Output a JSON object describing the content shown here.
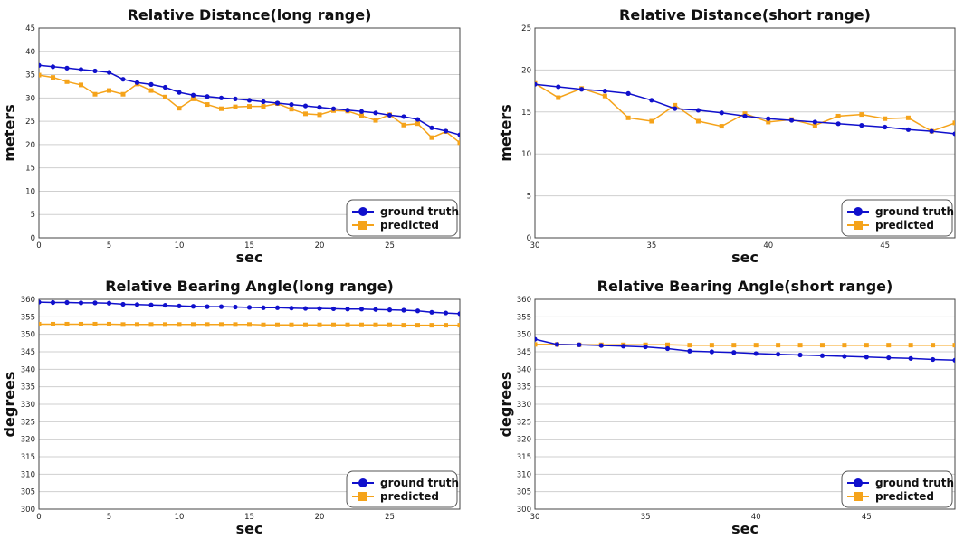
{
  "colors": {
    "ground_truth": "#1010cc",
    "predicted": "#f5a31a",
    "grid": "#cfcfcf"
  },
  "chart_data": [
    {
      "type": "line",
      "title": "Relative Distance(long range)",
      "xlabel": "sec",
      "ylabel": "meters",
      "xlim": [
        0,
        30
      ],
      "ylim": [
        0,
        45
      ],
      "xticks": [
        0,
        5,
        10,
        15,
        20,
        25
      ],
      "yticks": [
        0,
        5,
        10,
        15,
        20,
        25,
        30,
        35,
        40,
        45
      ],
      "grid": "horizontal",
      "legend": "bottom-right",
      "x": [
        0,
        1,
        2,
        3,
        4,
        5,
        6,
        7,
        8,
        9,
        10,
        11,
        12,
        13,
        14,
        15,
        16,
        17,
        18,
        19,
        20,
        21,
        22,
        23,
        24,
        25,
        26,
        27,
        28,
        29,
        30
      ],
      "series": [
        {
          "name": "ground truth",
          "marker": "circle",
          "values": [
            37.0,
            36.7,
            36.4,
            36.1,
            35.8,
            35.5,
            34.0,
            33.3,
            32.9,
            32.3,
            31.2,
            30.6,
            30.3,
            30.0,
            29.8,
            29.5,
            29.2,
            28.9,
            28.6,
            28.3,
            28.0,
            27.7,
            27.4,
            27.1,
            26.8,
            26.3,
            26.0,
            25.4,
            23.6,
            22.9,
            22.1
          ]
        },
        {
          "name": "predicted",
          "marker": "square",
          "values": [
            34.9,
            34.4,
            33.5,
            32.8,
            30.8,
            31.6,
            30.8,
            33.0,
            31.6,
            30.2,
            27.8,
            29.8,
            28.6,
            27.7,
            28.1,
            28.2,
            28.2,
            28.8,
            27.6,
            26.6,
            26.4,
            27.3,
            27.2,
            26.2,
            25.2,
            26.4,
            24.2,
            24.5,
            21.5,
            22.8,
            20.4
          ]
        }
      ]
    },
    {
      "type": "line",
      "title": "Relative Distance(short range)",
      "xlabel": "sec",
      "ylabel": "meters",
      "xlim": [
        30,
        48
      ],
      "ylim": [
        0,
        25
      ],
      "xticks": [
        30,
        35,
        40,
        45
      ],
      "yticks": [
        0,
        5,
        10,
        15,
        20,
        25
      ],
      "grid": "horizontal",
      "legend": "bottom-right",
      "x": [
        30,
        31,
        32,
        33,
        34,
        35,
        36,
        37,
        38,
        39,
        40,
        41,
        42,
        43,
        44,
        45,
        46,
        47,
        48
      ],
      "series": [
        {
          "name": "ground truth",
          "marker": "circle",
          "values": [
            18.3,
            18.0,
            17.7,
            17.5,
            17.2,
            16.4,
            15.4,
            15.2,
            14.9,
            14.5,
            14.2,
            14.0,
            13.8,
            13.6,
            13.4,
            13.2,
            12.9,
            12.7,
            12.4
          ]
        },
        {
          "name": "predicted",
          "marker": "square",
          "values": [
            18.4,
            16.7,
            17.8,
            16.9,
            14.3,
            13.9,
            15.8,
            13.9,
            13.3,
            14.8,
            13.8,
            14.1,
            13.4,
            14.5,
            14.7,
            14.2,
            14.3,
            12.7,
            13.7
          ]
        }
      ]
    },
    {
      "type": "line",
      "title": "Relative Bearing Angle(long range)",
      "xlabel": "sec",
      "ylabel": "degrees",
      "xlim": [
        0,
        30
      ],
      "ylim": [
        300,
        360
      ],
      "xticks": [
        0,
        5,
        10,
        15,
        20,
        25
      ],
      "yticks": [
        300,
        305,
        310,
        315,
        320,
        325,
        330,
        335,
        340,
        345,
        350,
        355,
        360
      ],
      "grid": "horizontal",
      "legend": "bottom-right",
      "x": [
        0,
        1,
        2,
        3,
        4,
        5,
        6,
        7,
        8,
        9,
        10,
        11,
        12,
        13,
        14,
        15,
        16,
        17,
        18,
        19,
        20,
        21,
        22,
        23,
        24,
        25,
        26,
        27,
        28,
        29,
        30
      ],
      "series": [
        {
          "name": "ground truth",
          "marker": "circle",
          "values": [
            359.2,
            359.1,
            359.1,
            359.0,
            359.0,
            358.9,
            358.6,
            358.5,
            358.4,
            358.3,
            358.1,
            358.0,
            357.9,
            357.9,
            357.8,
            357.7,
            357.6,
            357.6,
            357.5,
            357.4,
            357.4,
            357.3,
            357.2,
            357.2,
            357.1,
            357.0,
            356.9,
            356.7,
            356.3,
            356.1,
            355.9
          ]
        },
        {
          "name": "predicted",
          "marker": "square",
          "values": [
            352.9,
            352.9,
            352.9,
            352.9,
            352.9,
            352.9,
            352.8,
            352.8,
            352.8,
            352.8,
            352.8,
            352.8,
            352.8,
            352.8,
            352.8,
            352.8,
            352.7,
            352.7,
            352.7,
            352.7,
            352.7,
            352.7,
            352.7,
            352.7,
            352.7,
            352.7,
            352.6,
            352.6,
            352.6,
            352.6,
            352.6
          ]
        }
      ]
    },
    {
      "type": "line",
      "title": "Relative Bearing Angle(short range)",
      "xlabel": "sec",
      "ylabel": "degrees",
      "xlim": [
        30,
        49
      ],
      "ylim": [
        300,
        360
      ],
      "xticks": [
        30,
        35,
        40,
        45
      ],
      "yticks": [
        300,
        305,
        310,
        315,
        320,
        325,
        330,
        335,
        340,
        345,
        350,
        355,
        360
      ],
      "grid": "horizontal",
      "legend": "bottom-right",
      "x": [
        30,
        31,
        32,
        33,
        34,
        35,
        36,
        37,
        38,
        39,
        40,
        41,
        42,
        43,
        44,
        45,
        46,
        47,
        48,
        49
      ],
      "series": [
        {
          "name": "ground truth",
          "marker": "circle",
          "values": [
            348.6,
            347.1,
            347.0,
            346.8,
            346.6,
            346.4,
            345.9,
            345.2,
            345.0,
            344.8,
            344.5,
            344.3,
            344.1,
            343.9,
            343.7,
            343.5,
            343.3,
            343.1,
            342.8,
            342.6
          ]
        },
        {
          "name": "predicted",
          "marker": "square",
          "values": [
            347.1,
            347.1,
            347.0,
            347.0,
            347.0,
            347.0,
            347.0,
            346.9,
            346.9,
            346.9,
            346.9,
            346.9,
            346.9,
            346.9,
            346.9,
            346.9,
            346.9,
            346.9,
            346.9,
            346.9
          ]
        }
      ]
    }
  ]
}
